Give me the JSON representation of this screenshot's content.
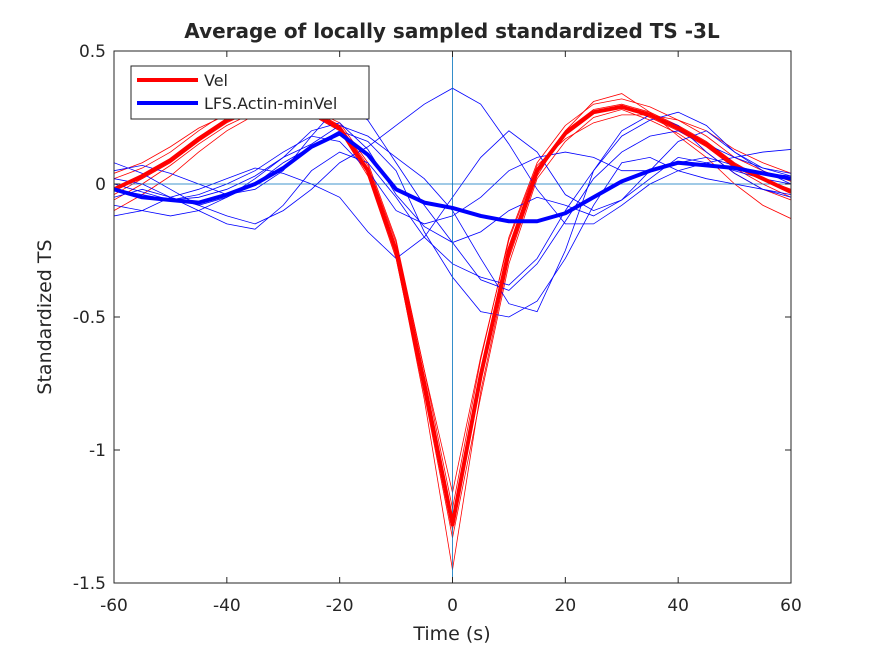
{
  "chart_data": {
    "type": "line",
    "title": "Average of locally sampled standardized TS -3L",
    "xlabel": "Time (s)",
    "ylabel": "Standardized TS",
    "xlim": [
      -60,
      60
    ],
    "ylim": [
      -1.5,
      0.5
    ],
    "xticks": [
      -60,
      -40,
      -20,
      0,
      20,
      40,
      60
    ],
    "yticks": [
      0.5,
      0,
      -0.5,
      -1,
      -1.5
    ],
    "xtick_labels": [
      "-60",
      "-40",
      "-20",
      "0",
      "20",
      "40",
      "60"
    ],
    "ytick_labels": [
      "0.5",
      "0",
      "-0.5",
      "-1",
      "-1.5"
    ],
    "grid": false,
    "legend_position": "top-left",
    "reference_lines": {
      "x": 0,
      "y": 0,
      "color": "#0072bd"
    },
    "x": [
      -60,
      -55,
      -50,
      -45,
      -40,
      -35,
      -30,
      -25,
      -20,
      -15,
      -10,
      -5,
      0,
      5,
      10,
      15,
      20,
      25,
      30,
      35,
      40,
      45,
      50,
      55,
      60
    ],
    "series": [
      {
        "name": "Vel",
        "color": "#ff0000",
        "values": [
          -0.02,
          0.03,
          0.09,
          0.17,
          0.24,
          0.28,
          0.3,
          0.27,
          0.21,
          0.05,
          -0.25,
          -0.75,
          -1.28,
          -0.72,
          -0.25,
          0.05,
          0.19,
          0.27,
          0.29,
          0.26,
          0.21,
          0.15,
          0.07,
          0.02,
          -0.03
        ]
      },
      {
        "name": "LFS.Actin-minVel",
        "color": "#0000ff",
        "values": [
          -0.02,
          -0.05,
          -0.06,
          -0.07,
          -0.04,
          0.0,
          0.06,
          0.14,
          0.19,
          0.11,
          -0.02,
          -0.07,
          -0.09,
          -0.12,
          -0.14,
          -0.14,
          -0.11,
          -0.05,
          0.01,
          0.05,
          0.08,
          0.07,
          0.06,
          0.04,
          0.02
        ]
      }
    ],
    "individual_traces": [
      {
        "color": "#ff0000",
        "values": [
          -0.06,
          0.0,
          0.07,
          0.15,
          0.22,
          0.27,
          0.28,
          0.26,
          0.2,
          0.03,
          -0.28,
          -0.79,
          -1.33,
          -0.8,
          -0.3,
          0.02,
          0.16,
          0.25,
          0.28,
          0.24,
          0.19,
          0.12,
          0.04,
          -0.02,
          -0.06
        ]
      },
      {
        "color": "#ff0000",
        "values": [
          0.02,
          0.06,
          0.12,
          0.2,
          0.27,
          0.31,
          0.32,
          0.28,
          0.23,
          0.08,
          -0.21,
          -0.7,
          -1.22,
          -0.66,
          -0.2,
          0.08,
          0.22,
          0.3,
          0.32,
          0.29,
          0.24,
          0.18,
          0.1,
          0.05,
          0.01
        ]
      },
      {
        "color": "#ff0000",
        "values": [
          -0.1,
          -0.04,
          0.03,
          0.12,
          0.2,
          0.26,
          0.29,
          0.27,
          0.21,
          0.04,
          -0.27,
          -0.81,
          -1.45,
          -0.78,
          -0.28,
          0.03,
          0.2,
          0.31,
          0.34,
          0.27,
          0.18,
          0.1,
          0.0,
          -0.08,
          -0.13
        ]
      },
      {
        "color": "#ff0000",
        "values": [
          0.04,
          0.08,
          0.14,
          0.21,
          0.26,
          0.29,
          0.31,
          0.28,
          0.22,
          0.07,
          -0.22,
          -0.7,
          -1.16,
          -0.65,
          -0.21,
          0.07,
          0.17,
          0.23,
          0.26,
          0.26,
          0.24,
          0.2,
          0.13,
          0.08,
          0.04
        ]
      },
      {
        "color": "#ff0000",
        "values": [
          -0.04,
          0.02,
          0.08,
          0.16,
          0.23,
          0.28,
          0.29,
          0.26,
          0.2,
          0.05,
          -0.26,
          -0.76,
          -1.3,
          -0.74,
          -0.27,
          0.04,
          0.19,
          0.27,
          0.29,
          0.25,
          0.2,
          0.14,
          0.06,
          0.0,
          -0.05
        ]
      },
      {
        "color": "#ff0000",
        "values": [
          -0.02,
          0.02,
          0.08,
          0.16,
          0.24,
          0.28,
          0.31,
          0.27,
          0.21,
          0.05,
          -0.25,
          -0.74,
          -1.28,
          -0.71,
          -0.24,
          0.06,
          0.2,
          0.28,
          0.3,
          0.27,
          0.22,
          0.16,
          0.08,
          0.02,
          -0.02
        ]
      },
      {
        "color": "#0000ff",
        "values": [
          0.05,
          0.07,
          0.04,
          0.0,
          -0.04,
          -0.02,
          0.05,
          0.18,
          0.3,
          0.24,
          0.08,
          -0.08,
          -0.22,
          -0.36,
          -0.4,
          -0.3,
          -0.14,
          0.02,
          0.12,
          0.18,
          0.2,
          0.15,
          0.1,
          0.06,
          0.04
        ]
      },
      {
        "color": "#0000ff",
        "values": [
          -0.08,
          -0.1,
          -0.12,
          -0.1,
          -0.05,
          0.02,
          0.1,
          0.2,
          0.23,
          0.13,
          -0.04,
          -0.16,
          -0.22,
          -0.18,
          -0.1,
          -0.05,
          -0.08,
          -0.12,
          -0.06,
          0.05,
          0.16,
          0.2,
          0.12,
          0.05,
          0.0
        ]
      },
      {
        "color": "#0000ff",
        "values": [
          0.08,
          0.04,
          -0.02,
          -0.08,
          -0.12,
          -0.15,
          -0.1,
          -0.02,
          0.08,
          0.14,
          0.22,
          0.3,
          0.36,
          0.3,
          0.15,
          -0.02,
          -0.15,
          -0.15,
          -0.08,
          0.0,
          0.05,
          0.08,
          0.1,
          0.12,
          0.13
        ]
      },
      {
        "color": "#0000ff",
        "values": [
          -0.05,
          -0.02,
          -0.05,
          -0.1,
          -0.15,
          -0.17,
          -0.08,
          0.05,
          0.12,
          0.08,
          -0.05,
          -0.2,
          -0.3,
          -0.35,
          -0.38,
          -0.28,
          -0.1,
          0.05,
          0.18,
          0.24,
          0.27,
          0.22,
          0.12,
          0.06,
          0.03
        ]
      },
      {
        "color": "#0000ff",
        "values": [
          0.0,
          -0.03,
          -0.06,
          -0.05,
          -0.02,
          0.03,
          0.1,
          0.15,
          0.22,
          0.18,
          0.1,
          0.02,
          -0.1,
          -0.28,
          -0.45,
          -0.48,
          -0.25,
          0.05,
          0.2,
          0.26,
          0.22,
          0.12,
          0.04,
          -0.02,
          -0.05
        ]
      },
      {
        "color": "#0000ff",
        "values": [
          -0.12,
          -0.1,
          -0.05,
          -0.02,
          0.02,
          0.06,
          0.04,
          0.0,
          -0.05,
          -0.18,
          -0.28,
          -0.2,
          -0.05,
          0.1,
          0.2,
          0.12,
          -0.04,
          -0.1,
          -0.06,
          0.02,
          0.1,
          0.08,
          0.05,
          0.02,
          0.0
        ]
      },
      {
        "color": "#0000ff",
        "values": [
          0.02,
          0.0,
          -0.05,
          -0.08,
          -0.05,
          0.0,
          0.08,
          0.14,
          0.2,
          0.16,
          0.05,
          -0.18,
          -0.35,
          -0.48,
          -0.5,
          -0.44,
          -0.28,
          -0.08,
          0.08,
          0.1,
          0.05,
          0.02,
          0.0,
          -0.02,
          -0.04
        ]
      },
      {
        "color": "#0000ff",
        "values": [
          -0.02,
          -0.04,
          -0.06,
          -0.04,
          0.0,
          0.05,
          0.12,
          0.18,
          0.16,
          0.05,
          -0.1,
          -0.15,
          -0.12,
          -0.05,
          0.05,
          0.1,
          0.12,
          0.1,
          0.05,
          0.05,
          0.08,
          0.1,
          0.07,
          0.04,
          0.03
        ]
      }
    ]
  }
}
